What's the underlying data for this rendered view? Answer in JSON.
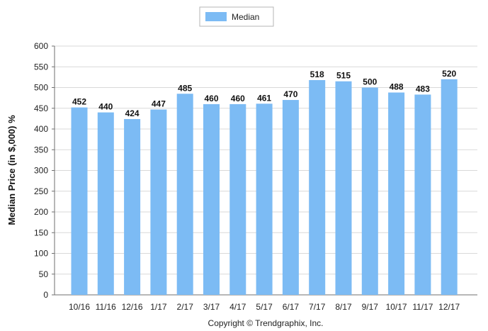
{
  "chart_data": {
    "type": "bar",
    "categories": [
      "10/16",
      "11/16",
      "12/16",
      "1/17",
      "2/17",
      "3/17",
      "4/17",
      "5/17",
      "6/17",
      "7/17",
      "8/17",
      "9/17",
      "10/17",
      "11/17",
      "12/17"
    ],
    "series": [
      {
        "name": "Median",
        "values": [
          452,
          440,
          424,
          447,
          485,
          460,
          460,
          461,
          470,
          518,
          515,
          500,
          488,
          483,
          520
        ]
      }
    ],
    "ylabel": "Median Price (in $,000) %",
    "xlabel": "",
    "ylim": [
      0,
      600
    ],
    "yticks": [
      0,
      50,
      100,
      150,
      200,
      250,
      300,
      350,
      400,
      450,
      500,
      550,
      600
    ],
    "grid": true,
    "legend_position": "top-center",
    "bar_color": "#7cbbf4",
    "data_labels": true
  },
  "caption": "Copyright © Trendgraphix, Inc."
}
